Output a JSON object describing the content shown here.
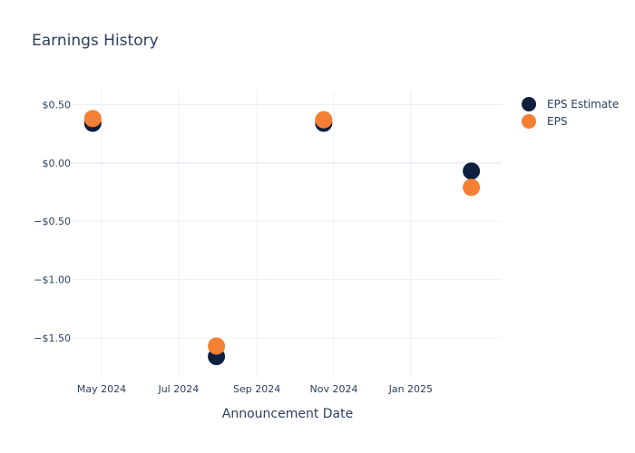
{
  "chart_data": {
    "type": "scatter",
    "title": "Earnings History",
    "xlabel": "Announcement Date",
    "ylabel": "",
    "x_ticks": [
      {
        "date": "2024-05-01",
        "label": "May 2024"
      },
      {
        "date": "2024-07-01",
        "label": "Jul 2024"
      },
      {
        "date": "2024-09-01",
        "label": "Sep 2024"
      },
      {
        "date": "2024-11-01",
        "label": "Nov 2024"
      },
      {
        "date": "2025-01-01",
        "label": "Jan 2025"
      }
    ],
    "y_ticks": [
      {
        "value": 0.5,
        "label": "$0.50"
      },
      {
        "value": 0.0,
        "label": "$0.00"
      },
      {
        "value": -0.5,
        "label": "−$0.50"
      },
      {
        "value": -1.0,
        "label": "−$1.00"
      },
      {
        "value": -1.5,
        "label": "−$1.50"
      }
    ],
    "xlim": [
      "2024-04-08",
      "2025-03-14"
    ],
    "ylim": [
      -1.85,
      0.62
    ],
    "grid": true,
    "legend_position": "top-right",
    "series": [
      {
        "name": "EPS Estimate",
        "color": "#0d1f3f",
        "points": [
          {
            "x": "2024-04-24",
            "y": 0.34
          },
          {
            "x": "2024-07-31",
            "y": -1.66
          },
          {
            "x": "2024-10-24",
            "y": 0.34
          },
          {
            "x": "2025-02-18",
            "y": -0.07
          }
        ]
      },
      {
        "name": "EPS",
        "color": "#f57f32",
        "points": [
          {
            "x": "2024-04-24",
            "y": 0.38
          },
          {
            "x": "2024-07-31",
            "y": -1.57
          },
          {
            "x": "2024-10-24",
            "y": 0.37
          },
          {
            "x": "2025-02-18",
            "y": -0.21
          }
        ]
      }
    ]
  }
}
